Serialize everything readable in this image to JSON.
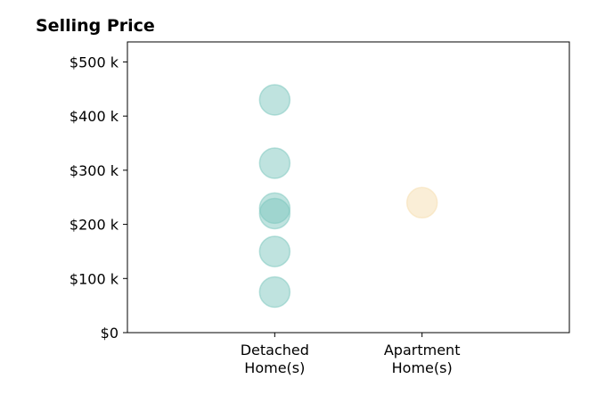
{
  "chart_data": {
    "type": "scatter",
    "title": "Selling Price",
    "xlabel": "",
    "ylabel": "",
    "categories": [
      [
        "Detached",
        "Home(s)"
      ],
      [
        "Apartment",
        "Home(s)"
      ]
    ],
    "y_ticks": [
      0,
      100000,
      200000,
      300000,
      400000,
      500000
    ],
    "y_tick_labels": [
      "$0",
      "$100 k",
      "$200 k",
      "$300 k",
      "$400 k",
      "$500 k"
    ],
    "ylim": [
      0,
      537000
    ],
    "xlim": [
      -1,
      2
    ],
    "grid": false,
    "series": [
      {
        "category_index": 0,
        "color": "#7fc8c0",
        "values": [
          430000,
          313000,
          230000,
          220000,
          150000,
          75000
        ]
      },
      {
        "category_index": 1,
        "color": "#f5deb0",
        "values": [
          240000
        ]
      }
    ]
  }
}
